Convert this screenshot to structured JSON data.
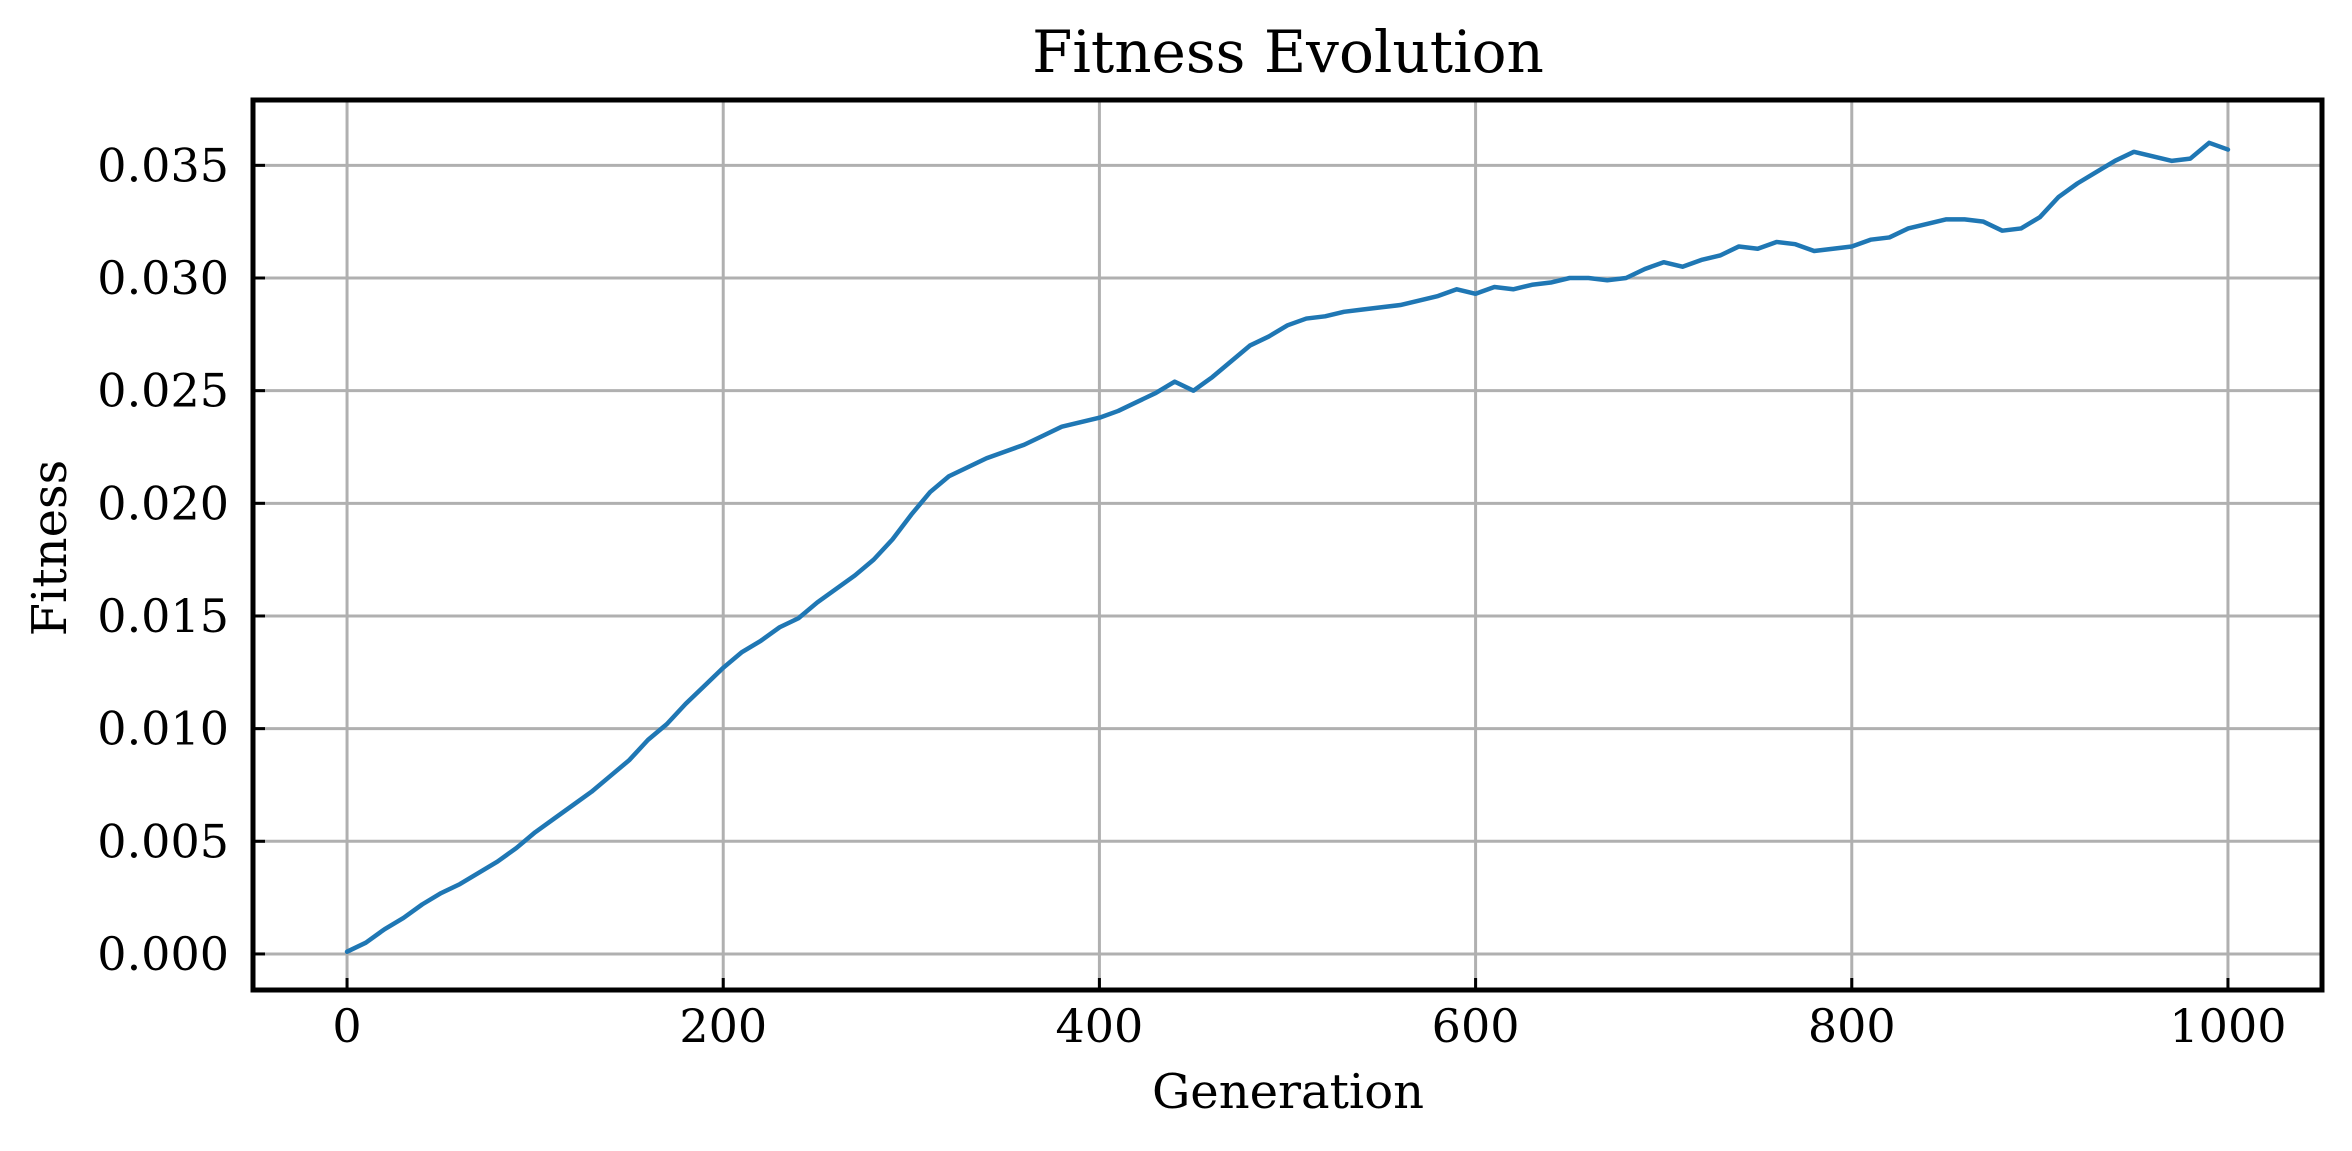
{
  "chart_data": {
    "type": "line",
    "title": "Fitness Evolution",
    "xlabel": "Generation",
    "ylabel": "Fitness",
    "xlim": [
      -50,
      1050
    ],
    "ylim": [
      -0.0016,
      0.0379
    ],
    "grid": true,
    "x_ticks": [
      0,
      200,
      400,
      600,
      800,
      1000
    ],
    "x_tick_labels": [
      "0",
      "200",
      "400",
      "600",
      "800",
      "1000"
    ],
    "y_ticks": [
      0.0,
      0.005,
      0.01,
      0.015,
      0.02,
      0.025,
      0.03,
      0.035
    ],
    "y_tick_labels": [
      "0.000",
      "0.005",
      "0.010",
      "0.015",
      "0.020",
      "0.025",
      "0.030",
      "0.035"
    ],
    "colors": {
      "series": "#1f77b4",
      "grid": "#b0b0b0",
      "frame": "#000000"
    },
    "series": [
      {
        "x": [
          0,
          10,
          20,
          30,
          40,
          50,
          60,
          70,
          80,
          90,
          100,
          110,
          120,
          130,
          140,
          150,
          160,
          170,
          180,
          190,
          200,
          210,
          220,
          230,
          240,
          250,
          260,
          270,
          280,
          290,
          300,
          310,
          320,
          330,
          340,
          350,
          360,
          370,
          380,
          390,
          400,
          410,
          420,
          430,
          440,
          450,
          460,
          470,
          480,
          490,
          500,
          510,
          520,
          530,
          540,
          550,
          560,
          570,
          580,
          590,
          600,
          610,
          620,
          630,
          640,
          650,
          660,
          670,
          680,
          690,
          700,
          710,
          720,
          730,
          740,
          750,
          760,
          770,
          780,
          790,
          800,
          810,
          820,
          830,
          840,
          850,
          860,
          870,
          880,
          890,
          900,
          910,
          920,
          930,
          940,
          950,
          960,
          970,
          980,
          990,
          1000
        ],
        "values": [
          0.0001,
          0.0005,
          0.0011,
          0.0016,
          0.0022,
          0.0027,
          0.0031,
          0.0036,
          0.0041,
          0.0047,
          0.0054,
          0.006,
          0.0066,
          0.0072,
          0.0079,
          0.0086,
          0.0095,
          0.0102,
          0.0111,
          0.0119,
          0.0127,
          0.0134,
          0.0139,
          0.0145,
          0.0149,
          0.0156,
          0.0162,
          0.0168,
          0.0175,
          0.0184,
          0.0195,
          0.0205,
          0.0212,
          0.0216,
          0.022,
          0.0223,
          0.0226,
          0.023,
          0.0234,
          0.0236,
          0.0238,
          0.0241,
          0.0245,
          0.0249,
          0.0254,
          0.025,
          0.0256,
          0.0263,
          0.027,
          0.0274,
          0.0279,
          0.0282,
          0.0283,
          0.0285,
          0.0286,
          0.0287,
          0.0288,
          0.029,
          0.0292,
          0.0295,
          0.0293,
          0.0296,
          0.0295,
          0.0297,
          0.0298,
          0.03,
          0.03,
          0.0299,
          0.03,
          0.0304,
          0.0307,
          0.0305,
          0.0308,
          0.031,
          0.0314,
          0.0313,
          0.0316,
          0.0315,
          0.0312,
          0.0313,
          0.0314,
          0.0317,
          0.0318,
          0.0322,
          0.0324,
          0.0326,
          0.0326,
          0.0325,
          0.0321,
          0.0322,
          0.0327,
          0.0336,
          0.0342,
          0.0347,
          0.0352,
          0.0356,
          0.0354,
          0.0352,
          0.0353,
          0.036,
          0.0357
        ]
      }
    ]
  }
}
